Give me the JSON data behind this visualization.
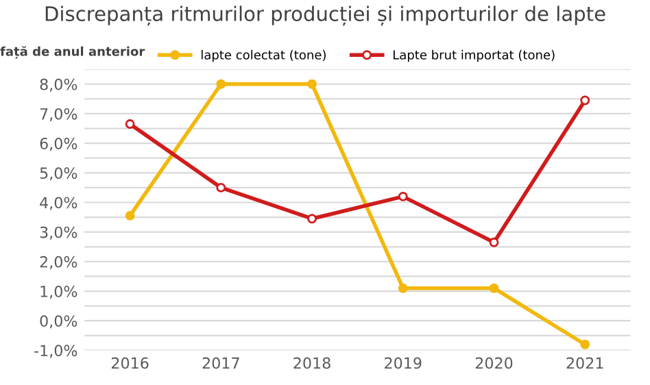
{
  "chart_data": {
    "type": "line",
    "title": "Discrepanța ritmurilor producției și importurilor de lapte",
    "ylabel": "față de anul anterior",
    "categories": [
      "2016",
      "2017",
      "2018",
      "2019",
      "2020",
      "2021"
    ],
    "series": [
      {
        "name": "lapte colectat (tone)",
        "color": "#f2b80f",
        "values": [
          3.55,
          8.0,
          8.0,
          1.1,
          1.1,
          -0.8
        ]
      },
      {
        "name": "Lapte brut importat (tone)",
        "color": "#d01c1c",
        "values": [
          6.65,
          4.5,
          3.45,
          4.2,
          2.65,
          7.45
        ]
      }
    ],
    "ylim": [
      -1.0,
      8.5
    ],
    "yticks": [
      {
        "value": -1,
        "label": "-1,0%"
      },
      {
        "value": -0.5,
        "label": null
      },
      {
        "value": 0,
        "label": "0,0%"
      },
      {
        "value": 0.5,
        "label": null
      },
      {
        "value": 1,
        "label": "1,0%"
      },
      {
        "value": 1.5,
        "label": null
      },
      {
        "value": 2,
        "label": "2,0%"
      },
      {
        "value": 2.5,
        "label": null
      },
      {
        "value": 3,
        "label": "3,0%"
      },
      {
        "value": 3.5,
        "label": null
      },
      {
        "value": 4,
        "label": "4,0%"
      },
      {
        "value": 4.5,
        "label": null
      },
      {
        "value": 5,
        "label": "5,0%"
      },
      {
        "value": 5.5,
        "label": null
      },
      {
        "value": 6,
        "label": "6,0%"
      },
      {
        "value": 6.5,
        "label": null
      },
      {
        "value": 7,
        "label": "7,0%"
      },
      {
        "value": 7.5,
        "label": null
      },
      {
        "value": 8,
        "label": "8,0%"
      },
      {
        "value": 8.5,
        "label": null
      }
    ],
    "grid": "y",
    "legend": "top",
    "marker": "circle",
    "line_style": "solid"
  }
}
